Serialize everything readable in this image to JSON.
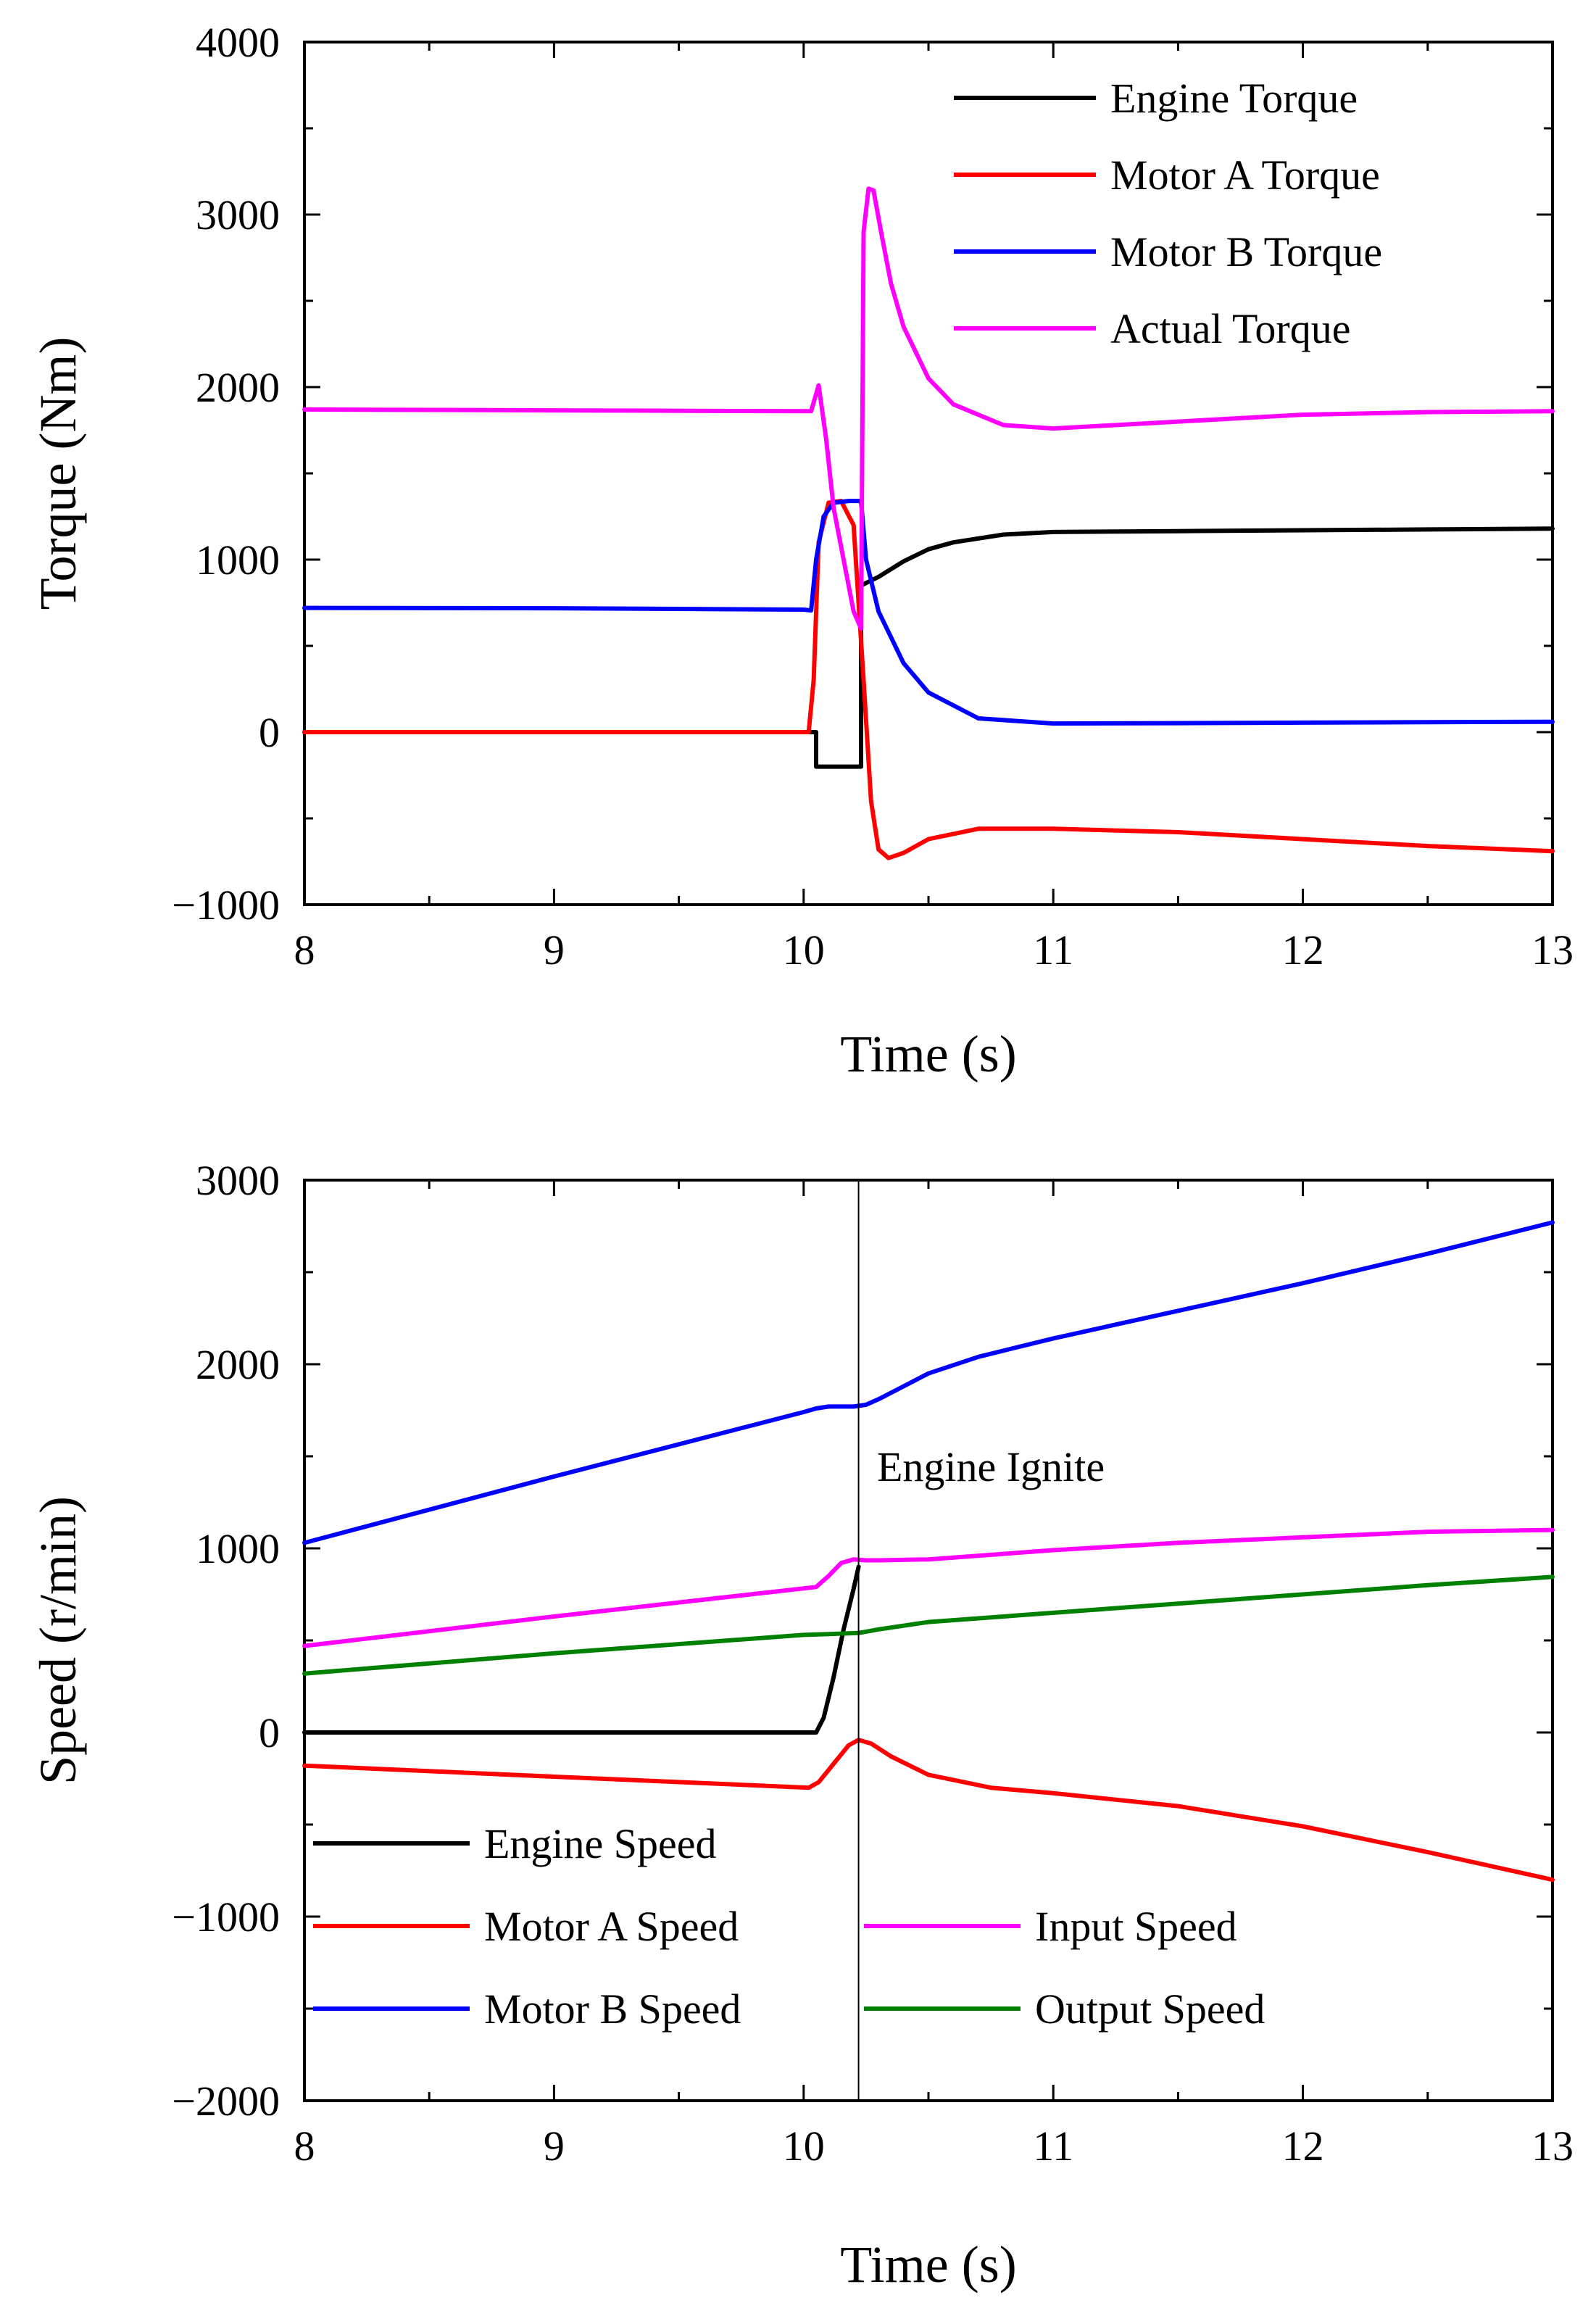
{
  "chart_data": [
    {
      "type": "line",
      "xlabel": "Time (s)",
      "ylabel": "Torque (Nm)",
      "xlim": [
        8,
        13
      ],
      "ylim": [
        -1000,
        4000
      ],
      "xticks": [
        8,
        9,
        10,
        11,
        12,
        13
      ],
      "yticks": [
        -1000,
        0,
        1000,
        2000,
        3000,
        4000
      ],
      "ytick_labels": [
        "−1000",
        "0",
        "1000",
        "2000",
        "3000",
        "4000"
      ],
      "grid": false,
      "legend_position": "top-right",
      "series": [
        {
          "name": "Engine Torque",
          "color": "#000000",
          "x": [
            8,
            10.05,
            10.05,
            10.23,
            10.23,
            10.3,
            10.4,
            10.5,
            10.6,
            10.8,
            11.0,
            11.5,
            12.0,
            12.5,
            13.0
          ],
          "y": [
            0,
            0,
            -200,
            -200,
            850,
            900,
            990,
            1060,
            1100,
            1145,
            1160,
            1165,
            1170,
            1175,
            1180
          ]
        },
        {
          "name": "Motor A Torque",
          "color": "#ff0000",
          "x": [
            8,
            10.02,
            10.04,
            10.06,
            10.1,
            10.15,
            10.2,
            10.24,
            10.27,
            10.3,
            10.34,
            10.4,
            10.5,
            10.7,
            11.0,
            11.5,
            12.0,
            12.5,
            13.0
          ],
          "y": [
            0,
            0,
            300,
            1100,
            1330,
            1340,
            1200,
            300,
            -400,
            -680,
            -730,
            -700,
            -620,
            -560,
            -560,
            -580,
            -620,
            -660,
            -690
          ]
        },
        {
          "name": "Motor B Torque",
          "color": "#0000ff",
          "x": [
            8,
            9,
            10,
            10.03,
            10.05,
            10.08,
            10.12,
            10.18,
            10.23,
            10.25,
            10.3,
            10.4,
            10.5,
            10.7,
            11.0,
            11.5,
            12.0,
            12.5,
            13.0
          ],
          "y": [
            720,
            718,
            710,
            705,
            1000,
            1250,
            1330,
            1340,
            1340,
            1000,
            700,
            400,
            230,
            80,
            50,
            52,
            55,
            58,
            60
          ]
        },
        {
          "name": "Actual Torque",
          "color": "#ff00ff",
          "x": [
            8,
            9,
            10.03,
            10.06,
            10.09,
            10.12,
            10.16,
            10.2,
            10.23,
            10.24,
            10.26,
            10.28,
            10.31,
            10.35,
            10.4,
            10.5,
            10.6,
            10.8,
            11.0,
            11.5,
            12.0,
            12.5,
            13.0
          ],
          "y": [
            1870,
            1865,
            1860,
            2010,
            1700,
            1300,
            1000,
            700,
            600,
            2900,
            3150,
            3140,
            2900,
            2600,
            2350,
            2050,
            1900,
            1780,
            1760,
            1800,
            1840,
            1855,
            1860
          ]
        }
      ]
    },
    {
      "type": "line",
      "xlabel": "Time (s)",
      "ylabel": "Speed (r/min)",
      "xlim": [
        8,
        13
      ],
      "ylim": [
        -2000,
        3000
      ],
      "xticks": [
        8,
        9,
        10,
        11,
        12,
        13
      ],
      "yticks": [
        -2000,
        -1000,
        0,
        1000,
        2000,
        3000
      ],
      "ytick_labels": [
        "−2000",
        "−1000",
        "0",
        "1000",
        "2000",
        "3000"
      ],
      "grid": false,
      "legend_position": "bottom-left",
      "annotation": {
        "text": "Engine Ignite",
        "x": 10.22
      },
      "series": [
        {
          "name": "Engine Speed",
          "color": "#000000",
          "x": [
            8,
            9,
            10.05,
            10.08,
            10.12,
            10.16,
            10.2,
            10.22
          ],
          "y": [
            0,
            0,
            0,
            80,
            300,
            560,
            780,
            900
          ]
        },
        {
          "name": "Motor A Speed",
          "color": "#ff0000",
          "x": [
            8,
            9,
            10.02,
            10.06,
            10.12,
            10.18,
            10.22,
            10.27,
            10.35,
            10.5,
            10.75,
            11.0,
            11.5,
            12.0,
            12.5,
            13.0
          ],
          "y": [
            -180,
            -240,
            -300,
            -270,
            -170,
            -70,
            -40,
            -60,
            -130,
            -230,
            -300,
            -330,
            -400,
            -510,
            -650,
            -800
          ]
        },
        {
          "name": "Motor B Speed",
          "color": "#0000ff",
          "x": [
            8,
            9,
            10,
            10.05,
            10.1,
            10.15,
            10.2,
            10.25,
            10.3,
            10.4,
            10.5,
            10.7,
            11.0,
            11.5,
            12.0,
            12.5,
            13.0
          ],
          "y": [
            1030,
            1390,
            1740,
            1760,
            1770,
            1770,
            1770,
            1780,
            1810,
            1880,
            1950,
            2040,
            2140,
            2290,
            2440,
            2600,
            2770
          ]
        },
        {
          "name": "Input Speed",
          "color": "#ff00ff",
          "x": [
            8,
            9,
            10.05,
            10.1,
            10.15,
            10.2,
            10.25,
            10.3,
            10.5,
            11.0,
            11.5,
            12.0,
            12.5,
            13.0
          ],
          "y": [
            470,
            630,
            790,
            850,
            920,
            940,
            935,
            935,
            940,
            990,
            1030,
            1060,
            1090,
            1100
          ]
        },
        {
          "name": "Output Speed",
          "color": "#008000",
          "x": [
            8,
            9,
            10,
            10.22,
            10.3,
            10.5,
            11.0,
            11.5,
            12.0,
            12.5,
            13.0
          ],
          "y": [
            320,
            430,
            530,
            540,
            560,
            600,
            650,
            700,
            750,
            800,
            845
          ]
        }
      ]
    }
  ]
}
